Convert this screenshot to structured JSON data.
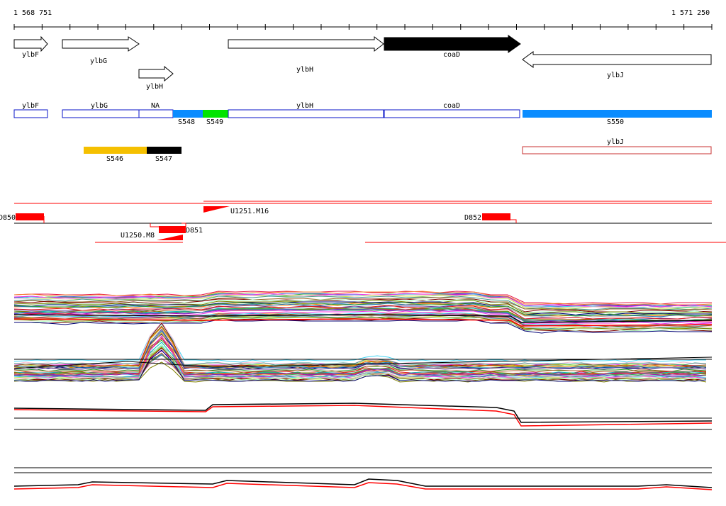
{
  "coords": {
    "start": "1 568 751",
    "end": "1 571 250"
  },
  "colors": {
    "segment_blue_outline": "#0a14c8",
    "segment_fill_blue": "#0a8cff",
    "segment_fill_green": "#00e400",
    "s546": "#f5c000",
    "s547": "#000000",
    "ylbJ_outline": "#c83232",
    "feature_red": "#ff0000"
  },
  "genes_top": [
    {
      "name": "ylbF",
      "strand": "+",
      "filled": false
    },
    {
      "name": "ylbG",
      "strand": "+",
      "filled": false
    },
    {
      "name": "ylbH",
      "strand": "+",
      "filled": false,
      "row": 2
    },
    {
      "name": "ylbH",
      "strand": "+",
      "filled": false
    },
    {
      "name": "coaD",
      "strand": "+",
      "filled": true
    },
    {
      "name": "ylbJ",
      "strand": "-",
      "filled": false
    }
  ],
  "segments": [
    {
      "label": "ylbF",
      "kind": "outline"
    },
    {
      "label": "ylbG",
      "kind": "outline"
    },
    {
      "label": "NA",
      "kind": "outline"
    },
    {
      "label": "S548",
      "kind": "blue"
    },
    {
      "label": "S549",
      "kind": "green"
    },
    {
      "label": "ylbH",
      "kind": "outline"
    },
    {
      "label": "coaD",
      "kind": "outline"
    },
    {
      "label": "S550",
      "kind": "blue"
    }
  ],
  "lower_segments": [
    {
      "label": "S546",
      "color": "#f5c000"
    },
    {
      "label": "S547",
      "color": "#000000"
    },
    {
      "label": "ylbJ",
      "color": "#c83232",
      "outline": true
    }
  ],
  "features": [
    {
      "label": "D850"
    },
    {
      "label": "D851"
    },
    {
      "label": "D852"
    },
    {
      "label": "U1251.M16"
    },
    {
      "label": "U1250.M8"
    }
  ]
}
